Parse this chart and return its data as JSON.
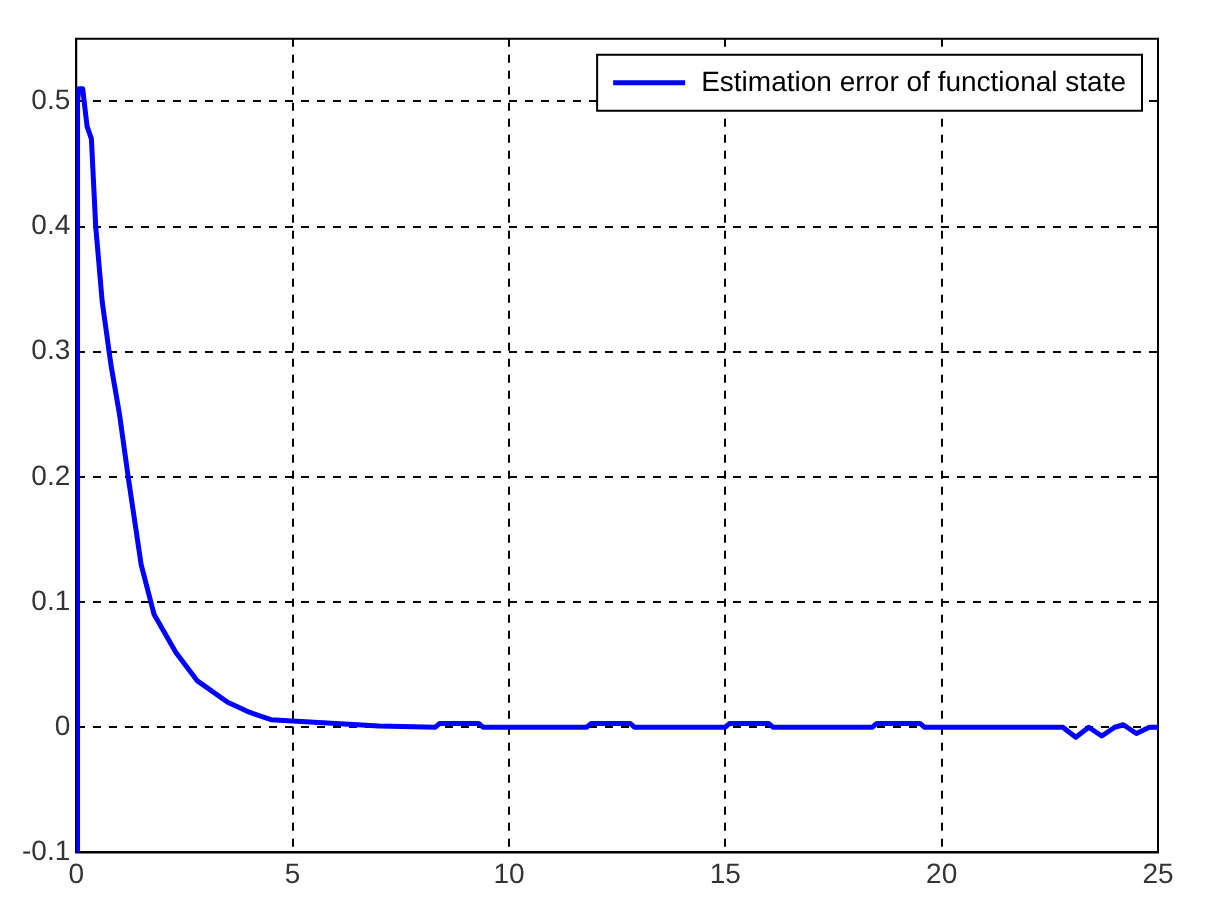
{
  "chart_data": {
    "type": "line",
    "xlim": [
      0,
      25
    ],
    "ylim": [
      -0.1,
      0.55
    ],
    "xticks": [
      0,
      5,
      10,
      15,
      20,
      25
    ],
    "yticks": [
      -0.1,
      0,
      0.1,
      0.2,
      0.3,
      0.4,
      0.5
    ],
    "grid": true,
    "legend": "top right",
    "line_style": "solid",
    "marker": "none",
    "series": [
      {
        "name": "Estimation error of functional state",
        "color": "#0000ff",
        "x": [
          0,
          0.03,
          0.06,
          0.15,
          0.25,
          0.35,
          0.45,
          0.6,
          0.8,
          1,
          1.2,
          1.5,
          1.8,
          2.3,
          2.8,
          3.5,
          4,
          4.5,
          5,
          6,
          7,
          8.3,
          8.4,
          9.3,
          9.4,
          11.8,
          11.9,
          12.8,
          12.9,
          15,
          15.1,
          16,
          16.1,
          18.4,
          18.5,
          19.5,
          19.6,
          22.8,
          23.1,
          23.4,
          23.7,
          24,
          24.2,
          24.5,
          24.8,
          25
        ],
        "values": [
          -0.1,
          0.5,
          0.51,
          0.51,
          0.48,
          0.47,
          0.4,
          0.34,
          0.29,
          0.25,
          0.2,
          0.13,
          0.09,
          0.06,
          0.037,
          0.02,
          0.012,
          0.006,
          0.005,
          0.003,
          0.001,
          0,
          0.003,
          0.003,
          0,
          0,
          0.003,
          0.003,
          0,
          0,
          0.003,
          0.003,
          0,
          0,
          0.003,
          0.003,
          0,
          0,
          -0.008,
          0,
          -0.007,
          0,
          0.002,
          -0.005,
          0,
          0
        ]
      }
    ]
  }
}
